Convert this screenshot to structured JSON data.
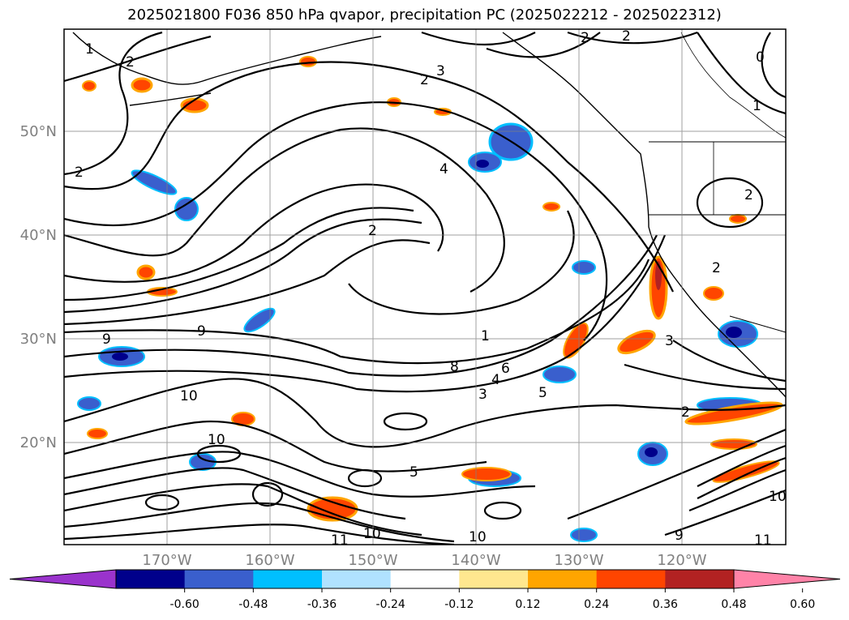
{
  "title": "2025021800 F036 850 hPa qvapor, precipitation PC (2025022212 - 2025022312)",
  "map": {
    "lat_labels": [
      "50°N",
      "40°N",
      "30°N",
      "20°N"
    ],
    "lon_labels": [
      "170°W",
      "160°W",
      "150°W",
      "140°W",
      "130°W",
      "120°W"
    ],
    "gridlines": true,
    "contour_label_values": [
      "1",
      "2",
      "2",
      "2",
      "3",
      "2",
      "2",
      "2",
      "4",
      "2",
      "0",
      "1",
      "2",
      "9",
      "9",
      "10",
      "10",
      "8",
      "6",
      "4",
      "1",
      "5",
      "3",
      "2",
      "3",
      "5",
      "10",
      "9",
      "11",
      "10",
      "11",
      "10"
    ]
  },
  "colorbar": {
    "tick_labels": [
      "-0.60",
      "-0.48",
      "-0.36",
      "-0.24",
      "-0.12",
      "0.12",
      "0.24",
      "0.36",
      "0.48",
      "0.60"
    ],
    "colors": [
      "#9a33cc",
      "#00008b",
      "#3a5fcd",
      "#00bfff",
      "#b0e2ff",
      "#ffffff",
      "#ffe78f",
      "#ffa500",
      "#ff4500",
      "#b22222",
      "#ff83a8"
    ],
    "extend": "both"
  }
}
